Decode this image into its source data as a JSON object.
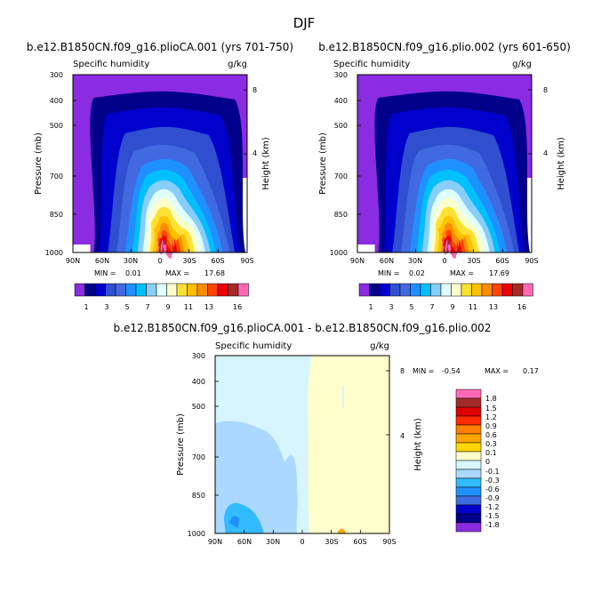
{
  "figure": {
    "season": "DJF"
  },
  "chart_data": [
    {
      "id": "top-left",
      "type": "heatmap",
      "title": "b.e12.B1850CN.f09_g16.plioCA.001 (yrs 701-750)",
      "variable_label": "Specific humidity",
      "units_label": "g/kg",
      "ylabel": "Pressure (mb)",
      "ylabel_right": "Height (km)",
      "x_ticks": [
        "90N",
        "60N",
        "30N",
        "0",
        "30S",
        "60S",
        "90S"
      ],
      "y_ticks": [
        "300",
        "400",
        "500",
        "700",
        "850",
        "1000"
      ],
      "y_ticks_right": [
        "8",
        "4"
      ],
      "min_label": "MIN =",
      "min_value": "0.01",
      "max_label": "MAX =",
      "max_value": "17.68",
      "colorbar_labels": [
        "1",
        "3",
        "5",
        "7",
        "9",
        "11",
        "13",
        "16"
      ]
    },
    {
      "id": "top-right",
      "type": "heatmap",
      "title": "b.e12.B1850CN.f09_g16.plio.002 (yrs 601-650)",
      "variable_label": "Specific humidity",
      "units_label": "g/kg",
      "ylabel": "Pressure (mb)",
      "ylabel_right": "Height (km)",
      "x_ticks": [
        "90N",
        "60N",
        "30N",
        "0",
        "30S",
        "60S",
        "90S"
      ],
      "y_ticks": [
        "300",
        "400",
        "500",
        "700",
        "850",
        "1000"
      ],
      "y_ticks_right": [
        "8",
        "4"
      ],
      "min_label": "MIN =",
      "min_value": "0.02",
      "max_label": "MAX =",
      "max_value": "17.69",
      "colorbar_labels": [
        "1",
        "3",
        "5",
        "7",
        "9",
        "11",
        "13",
        "16"
      ]
    },
    {
      "id": "bottom",
      "type": "heatmap",
      "title": "b.e12.B1850CN.f09_g16.plioCA.001 - b.e12.B1850CN.f09_g16.plio.002",
      "variable_label": "Specific humidity",
      "units_label": "g/kg",
      "ylabel": "Pressure (mb)",
      "ylabel_right": "Height (km)",
      "x_ticks": [
        "90N",
        "60N",
        "30N",
        "0",
        "30S",
        "60S",
        "90S"
      ],
      "y_ticks": [
        "300",
        "400",
        "500",
        "700",
        "850",
        "1000"
      ],
      "y_ticks_right": [
        "8",
        "4"
      ],
      "min_label": "MIN =",
      "min_value": "-0.54",
      "max_label": "MAX =",
      "max_value": "0.17",
      "colorbar_labels": [
        "1.8",
        "1.5",
        "1.2",
        "0.9",
        "0.6",
        "0.3",
        "0.1",
        "0",
        "-0.1",
        "-0.3",
        "-0.6",
        "-0.9",
        "-1.2",
        "-1.5",
        "-1.8"
      ]
    }
  ],
  "palettes": {
    "humidity": [
      "#8b2be2",
      "#00008b",
      "#0000cd",
      "#2f4fd0",
      "#4169e1",
      "#1e90ff",
      "#00bfff",
      "#87cefa",
      "#e0ffff",
      "#ffffcc",
      "#ffe135",
      "#ffc000",
      "#ff8c00",
      "#ff4500",
      "#ee0000",
      "#a52a2a",
      "#ff69b4"
    ],
    "difference": [
      "#ff69b4",
      "#a52a2a",
      "#dd0000",
      "#ff2a00",
      "#ff7f00",
      "#ffa500",
      "#ffd700",
      "#ffffcc",
      "#d6f5ff",
      "#aad8ff",
      "#33bbff",
      "#1e90ff",
      "#3c6de0",
      "#0000cd",
      "#00008b",
      "#8a2be2"
    ]
  }
}
